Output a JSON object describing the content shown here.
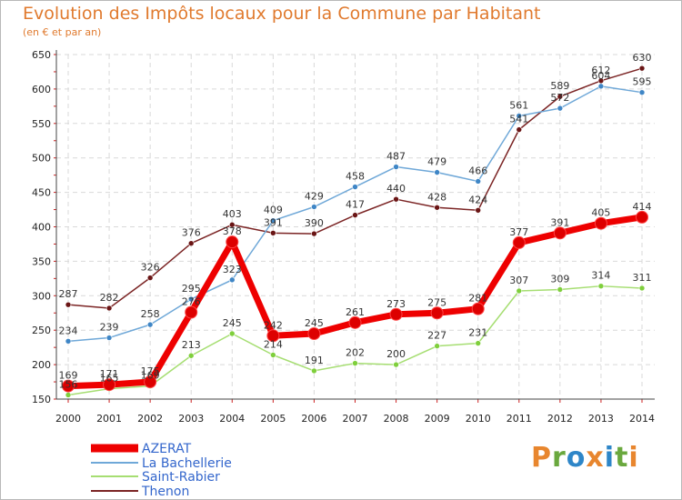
{
  "chart_data": {
    "type": "line",
    "title": "Evolution des Impôts locaux pour la Commune par Habitant",
    "subtitle": "(en € et par an)",
    "xlabel": "",
    "ylabel": "",
    "x": [
      "2000",
      "2001",
      "2002",
      "2003",
      "2004",
      "2005",
      "2006",
      "2007",
      "2008",
      "2009",
      "2010",
      "2011",
      "2012",
      "2013",
      "2014"
    ],
    "yticks": [
      150,
      200,
      250,
      300,
      350,
      400,
      450,
      500,
      550,
      600,
      650
    ],
    "ylim": [
      150,
      650
    ],
    "grid": true,
    "legend_position": "bottom-left",
    "series": [
      {
        "name": "AZERAT",
        "color": "#ee0000",
        "point_color": "#dd0000",
        "values": [
          169,
          171,
          175,
          276,
          378,
          242,
          245,
          261,
          273,
          275,
          281,
          377,
          391,
          405,
          414
        ]
      },
      {
        "name": "La Bachellerie",
        "color": "#6fa8d8",
        "point_color": "#3f86c6",
        "values": [
          234,
          239,
          258,
          295,
          323,
          409,
          429,
          458,
          487,
          479,
          466,
          561,
          572,
          604,
          595
        ]
      },
      {
        "name": "Saint-Rabier",
        "color": "#a6de72",
        "point_color": "#7fcf3c",
        "values": [
          156,
          165,
          169,
          213,
          245,
          214,
          191,
          202,
          200,
          227,
          231,
          307,
          309,
          314,
          311
        ]
      },
      {
        "name": "Thenon",
        "color": "#7b2424",
        "point_color": "#6a1515",
        "values": [
          287,
          282,
          326,
          376,
          403,
          391,
          390,
          417,
          440,
          428,
          424,
          541,
          589,
          612,
          630
        ]
      }
    ]
  },
  "logo": {
    "letters": [
      "P",
      "r",
      "o",
      "x",
      "i",
      "t",
      "i"
    ],
    "colors": [
      "#e8862e",
      "#6aa83e",
      "#2e86c8",
      "#e8862e",
      "#2e86c8",
      "#6aa83e",
      "#e8862e"
    ]
  }
}
